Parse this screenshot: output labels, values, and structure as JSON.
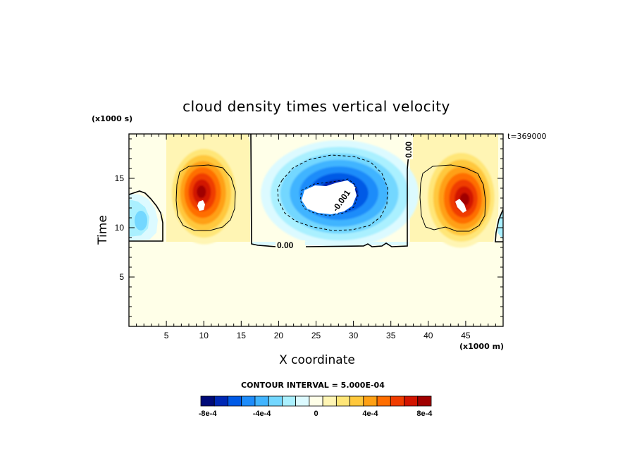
{
  "chart_data": {
    "type": "heatmap",
    "title": "cloud density times vertical velocity",
    "xlabel": "X coordinate",
    "ylabel": "Time",
    "x_unit_label": "(x1000 m)",
    "y_unit_label": "(x1000 s)",
    "time_stamp": "t=369000",
    "xlim": [
      0,
      50
    ],
    "ylim": [
      0,
      19.5
    ],
    "x_ticks": [
      5,
      10,
      15,
      20,
      25,
      30,
      35,
      40,
      45
    ],
    "y_ticks": [
      5,
      10,
      15
    ],
    "x_tick_labels": [
      "5",
      "10",
      "15",
      "20",
      "25",
      "30",
      "35",
      "40",
      "45"
    ],
    "y_tick_labels": [
      "5",
      "10",
      "15"
    ],
    "contour_interval_label": "CONTOUR INTERVAL = 5.000E-04",
    "contour_line_labels": [
      "0.00",
      "0.00",
      "-0.001"
    ],
    "colorbar": {
      "colors": [
        "#000a78",
        "#0028b4",
        "#005ae6",
        "#1e8cfa",
        "#41b4ff",
        "#73d7ff",
        "#aaf0ff",
        "#dcfaff",
        "#ffffe8",
        "#fff5b4",
        "#ffe678",
        "#ffc83c",
        "#ffa014",
        "#ff6e00",
        "#f03c00",
        "#d21400",
        "#a00000"
      ],
      "tick_labels": [
        "-8e-4",
        "-4e-4",
        "0",
        "4e-4",
        "8e-4"
      ],
      "tick_values": [
        -0.0008,
        -0.0004,
        0,
        0.0004,
        0.0008
      ]
    },
    "features": [
      {
        "kind": "positive",
        "x": 9.7,
        "y": 12.6,
        "peak": 0.0011
      },
      {
        "kind": "negative",
        "x": 27.7,
        "y": 13.3,
        "peak": -0.0012
      },
      {
        "kind": "positive",
        "x": 44.7,
        "y": 12.4,
        "peak": 0.0011
      },
      {
        "kind": "negative",
        "x": 1.5,
        "y": 11.0,
        "peak": -0.0003
      }
    ],
    "background_value": 0.0,
    "grid": false
  }
}
